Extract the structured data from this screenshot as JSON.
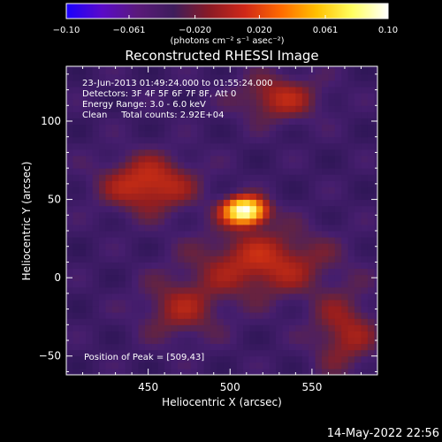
{
  "colorbar": {
    "ticks": [
      "−0.10",
      "−0.061",
      "−0.020",
      "0.020",
      "0.061",
      "0.10"
    ],
    "units_label": "(photons cm⁻² s⁻¹ asec⁻²)",
    "colors": [
      "#1a00ff",
      "#5a0ac8",
      "#5a1a7a",
      "#3e1d5c",
      "#8a1a25",
      "#d02818",
      "#ff6a00",
      "#ffc000",
      "#ffff60",
      "#ffffff"
    ]
  },
  "chart_data": {
    "type": "heatmap",
    "title": "Reconstructed RHESSI Image",
    "xlabel": "Heliocentric X (arcsec)",
    "ylabel": "Heliocentric Y (arcsec)",
    "xlim": [
      400,
      590
    ],
    "ylim": [
      -62,
      135
    ],
    "xticks": [
      "450",
      "500",
      "550"
    ],
    "xtick_values": [
      450,
      500,
      550
    ],
    "yticks": [
      "−50",
      "0",
      "50",
      "100"
    ],
    "ytick_values": [
      -50,
      0,
      50,
      100
    ],
    "value_range": [
      -0.1,
      0.1
    ],
    "peak_position": [
      509,
      43
    ],
    "annotations": [
      "23-Jun-2013 01:49:24.000 to 01:55:24.000",
      "Detectors: 3F 4F 5F 6F 7F 8F, Att 0",
      "Energy Range: 3.0 - 6.0 keV",
      "Clean     Total counts: 2.92E+04"
    ],
    "peak_label": "Position of Peak = [509,43]"
  },
  "footer": {
    "timestamp": "14-May-2022 22:56"
  }
}
